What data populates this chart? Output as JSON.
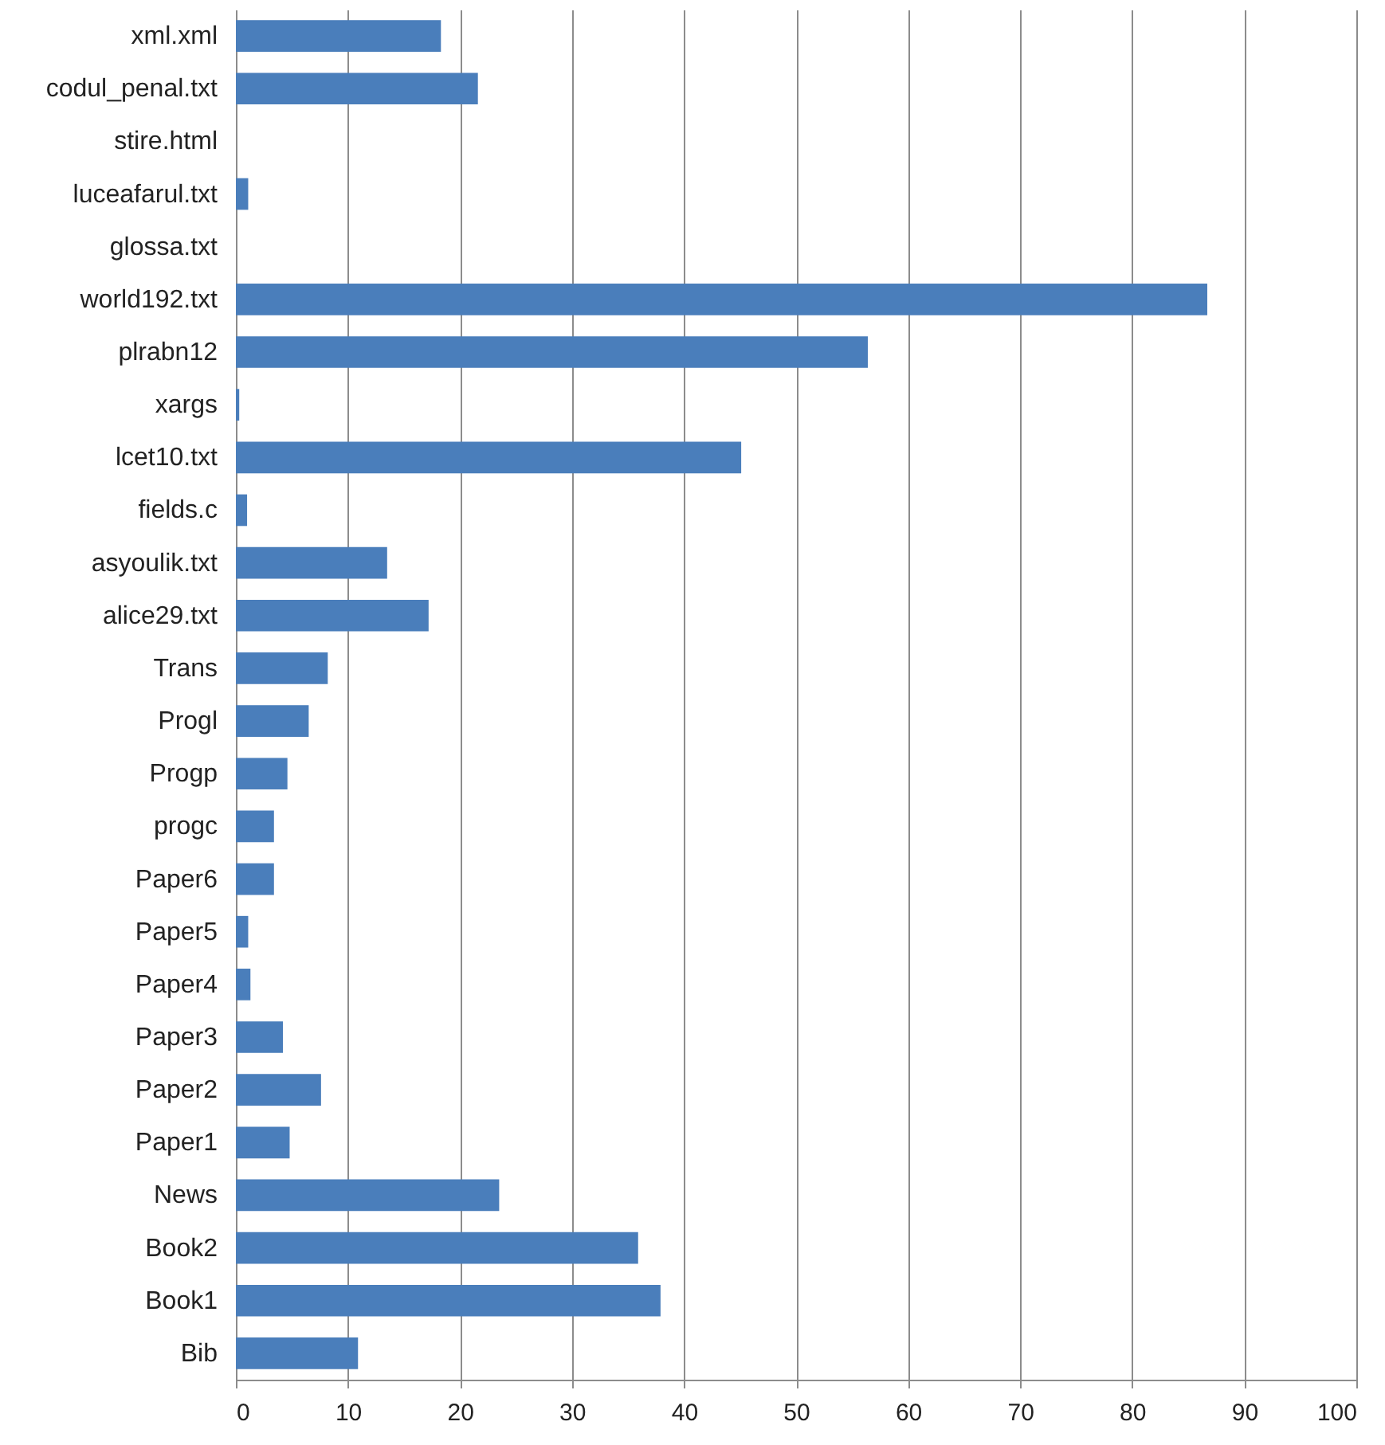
{
  "chart_data": {
    "type": "bar",
    "orientation": "horizontal",
    "categories": [
      "xml.xml",
      "codul_penal.txt",
      "stire.html",
      "luceafarul.txt",
      "glossa.txt",
      "world192.txt",
      "plrabn12",
      "xargs",
      "lcet10.txt",
      "fields.c",
      "asyoulik.txt",
      "alice29.txt",
      "Trans",
      "Progl",
      "Progp",
      "progc",
      "Paper6",
      "Paper5",
      "Paper4",
      "Paper3",
      "Paper2",
      "Paper1",
      "News",
      "Book2",
      "Book1",
      "Bib"
    ],
    "values": [
      18.3,
      21.6,
      0,
      1.1,
      0,
      86.7,
      56.4,
      0.3,
      45.1,
      1.0,
      13.5,
      17.2,
      8.2,
      6.5,
      4.6,
      3.4,
      3.4,
      1.1,
      1.3,
      4.2,
      7.6,
      4.8,
      23.5,
      35.9,
      37.9,
      10.9
    ],
    "color": "#4a7ebb",
    "xlim": [
      0,
      100
    ],
    "xticks": [
      0,
      10,
      20,
      30,
      40,
      50,
      60,
      70,
      80,
      90,
      100
    ],
    "grid": "x"
  }
}
